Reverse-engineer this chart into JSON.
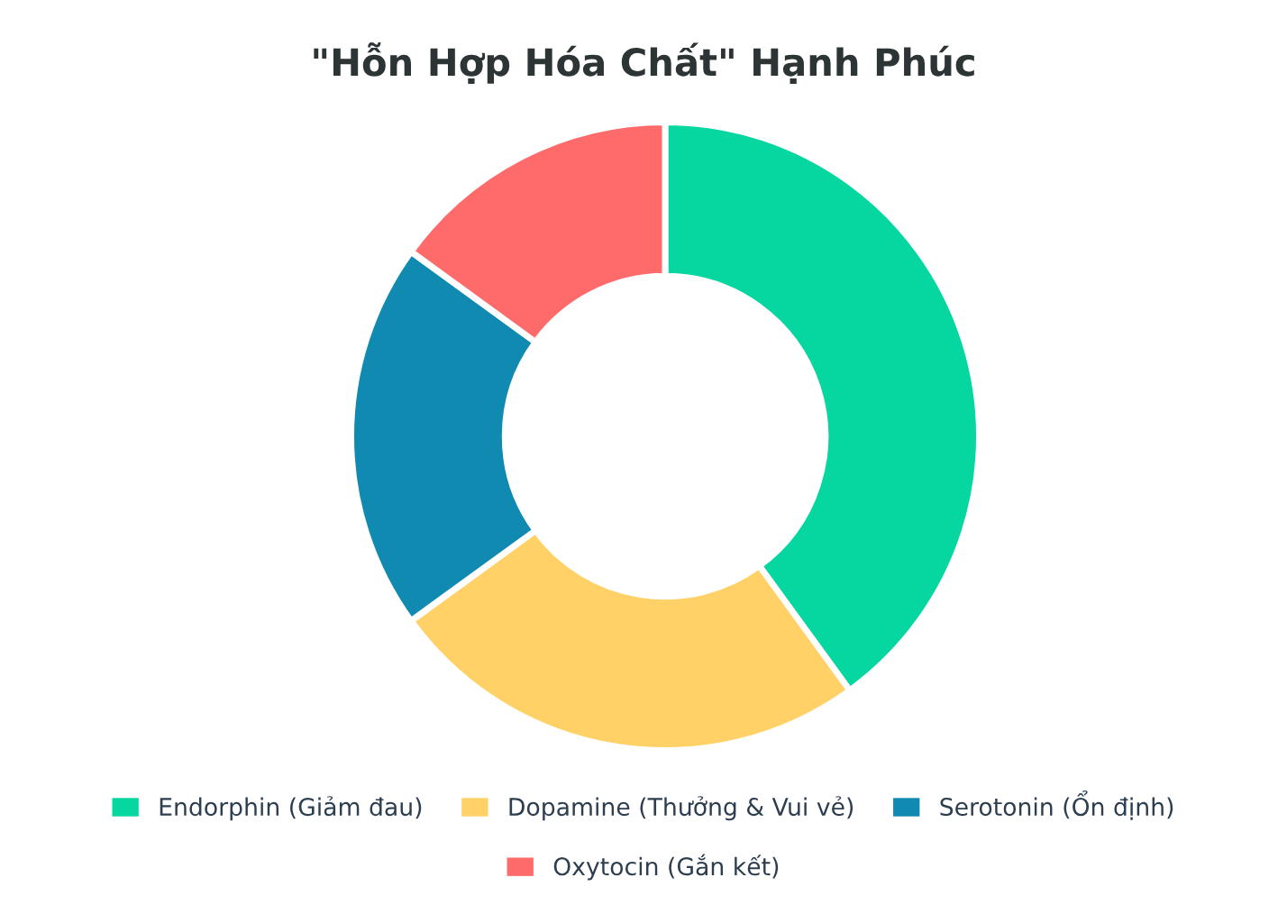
{
  "chart_data": {
    "type": "donut",
    "title": "\"Hỗn Hợp Hóa Chất\" Hạnh Phúc",
    "categories": [
      "Endorphin (Giảm đau)",
      "Dopamine (Thưởng & Vui vẻ)",
      "Serotonin (Ổn định)",
      "Oxytocin (Gắn kết)"
    ],
    "values": [
      40,
      25,
      20,
      15
    ],
    "colors": [
      "#06d6a0",
      "#ffd166",
      "#118ab2",
      "#ff6b6b"
    ],
    "legend": "bottom"
  }
}
